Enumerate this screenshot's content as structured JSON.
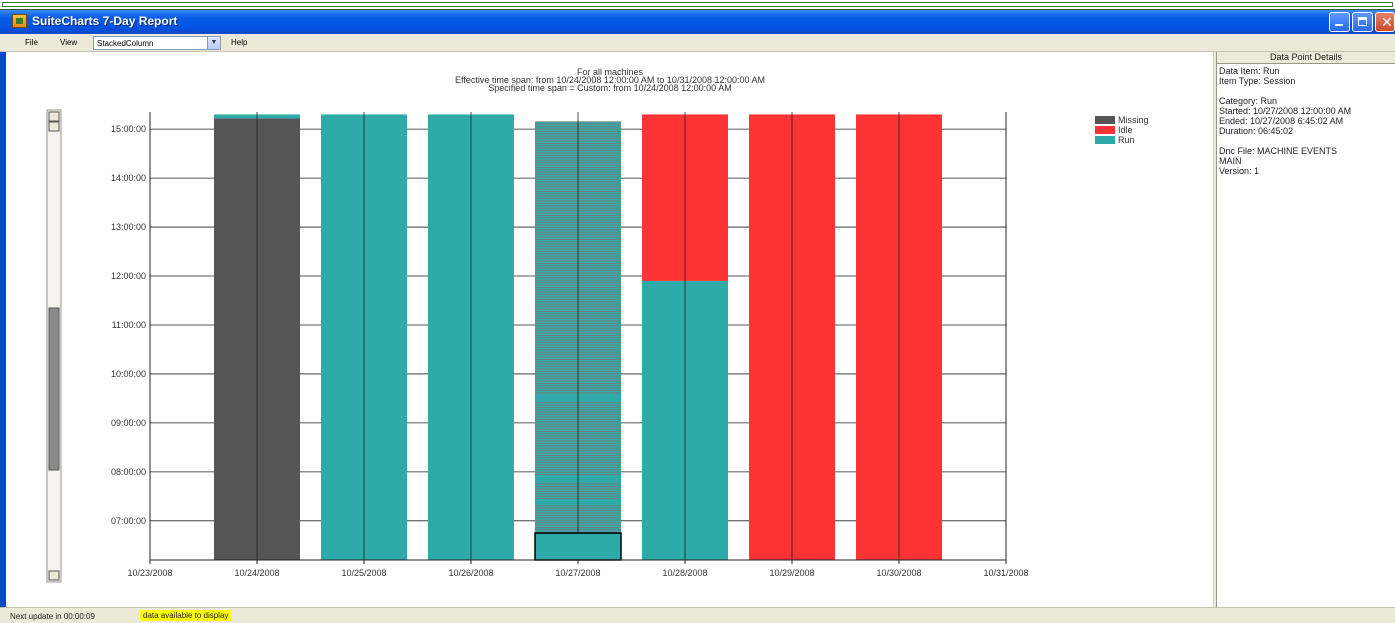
{
  "window": {
    "title": "SuiteCharts 7-Day Report"
  },
  "menu": {
    "file": "File",
    "view": "View",
    "help": "Help",
    "view_select_value": "StackedColumn"
  },
  "chart_data": {
    "type": "bar",
    "stacked": true,
    "title_lines": [
      "For all machines",
      "Effective time span: from 10/24/2008 12:00:00 AM to 10/31/2008 12:00:00 AM",
      "Specified time span = Custom: from 10/24/2008 12:00:00 AM"
    ],
    "x_ticks": [
      "10/23/2008",
      "10/24/2008",
      "10/25/2008",
      "10/26/2008",
      "10/27/2008",
      "10/28/2008",
      "10/29/2008",
      "10/30/2008",
      "10/31/2008"
    ],
    "y_ticks": [
      "07:00:00",
      "08:00:00",
      "09:00:00",
      "10:00:00",
      "11:00:00",
      "12:00:00",
      "13:00:00",
      "14:00:00",
      "15:00:00"
    ],
    "y_tick_hours": [
      7,
      8,
      9,
      10,
      11,
      12,
      13,
      14,
      15
    ],
    "ylim_hours": [
      6.2,
      15.35
    ],
    "categories": [
      "10/24/2008",
      "10/25/2008",
      "10/26/2008",
      "10/27/2008",
      "10/28/2008",
      "10/29/2008",
      "10/30/2008"
    ],
    "legend": [
      {
        "name": "Missing",
        "color": "#555555"
      },
      {
        "name": "Idle",
        "color": "#ff3333"
      },
      {
        "name": "Run",
        "color": "#2eaaa8"
      }
    ],
    "bars": [
      {
        "segments": [
          {
            "series": "Missing",
            "from": 6.2,
            "to": 15.22
          },
          {
            "series": "Run",
            "from": 15.22,
            "to": 15.3
          }
        ]
      },
      {
        "segments": [
          {
            "series": "Run",
            "from": 6.2,
            "to": 15.3
          }
        ]
      },
      {
        "segments": [
          {
            "series": "Run",
            "from": 6.2,
            "to": 15.3
          }
        ]
      },
      {
        "striped": true,
        "segments": [
          {
            "series": "Run",
            "from": 6.2,
            "to": 15.15
          }
        ]
      },
      {
        "segments": [
          {
            "series": "Run",
            "from": 6.2,
            "to": 11.9
          },
          {
            "series": "Idle",
            "from": 11.9,
            "to": 15.3
          }
        ]
      },
      {
        "segments": [
          {
            "series": "Idle",
            "from": 6.2,
            "to": 15.3
          }
        ]
      },
      {
        "segments": [
          {
            "series": "Idle",
            "from": 6.2,
            "to": 15.3
          }
        ]
      }
    ],
    "selected": {
      "category_index": 3,
      "from": 6.2,
      "to": 6.75
    }
  },
  "details": {
    "header": "Data Point Details",
    "lines": [
      "Data Item: Run",
      "Item Type: Session",
      "",
      "Category: Run",
      "Started: 10/27/2008 12:00:00 AM",
      "Ended: 10/27/2008 6:45:02 AM",
      "Duration: 06:45:02",
      "",
      "Dnc File: MACHINE EVENTS",
      "MAIN",
      "Version: 1"
    ]
  },
  "status": {
    "text": "Next update in 00:00:09",
    "badge": "data available to display"
  }
}
